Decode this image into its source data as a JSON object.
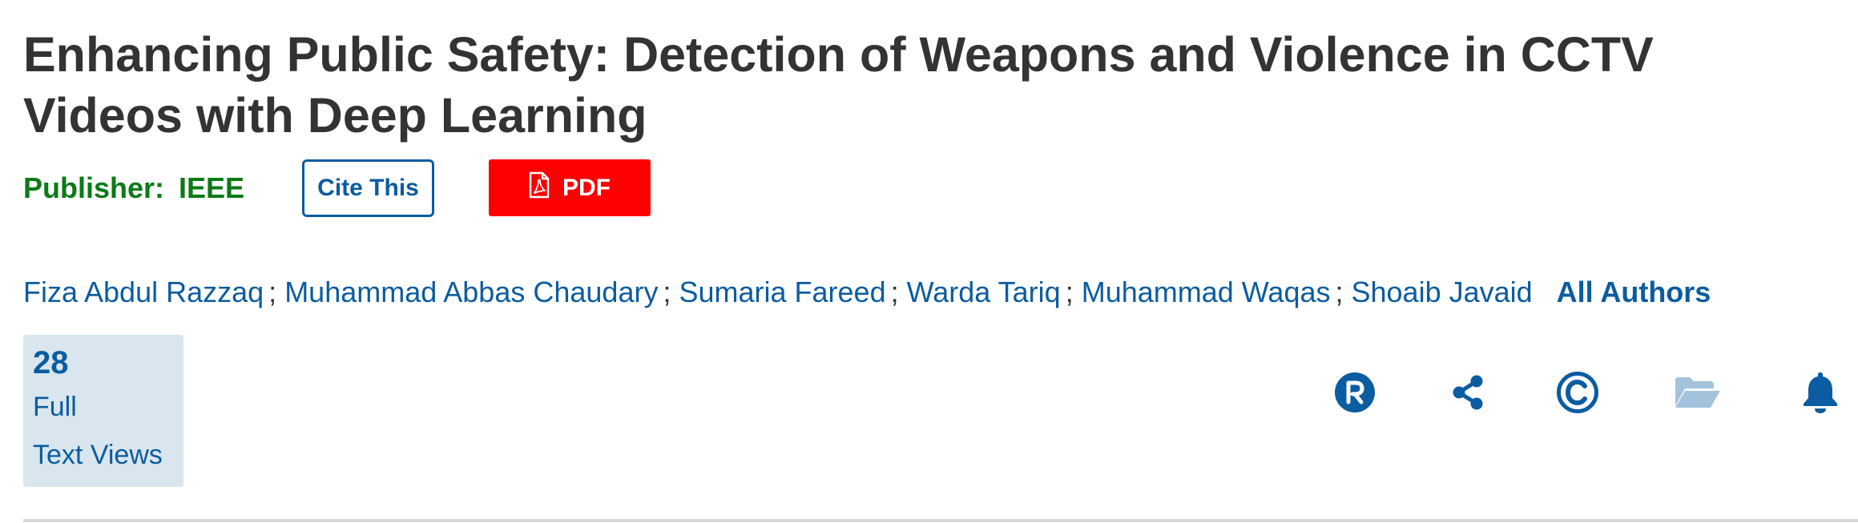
{
  "article": {
    "title": "Enhancing Public Safety: Detection of Weapons and Violence in CCTV Videos with Deep Learning",
    "publisher_label": "Publisher:",
    "publisher_value": "IEEE"
  },
  "actions": {
    "cite_label": "Cite This",
    "pdf_label": "PDF"
  },
  "authors": {
    "list": [
      "Fiza Abdul Razzaq",
      "Muhammad Abbas Chaudary",
      "Sumaria Fareed",
      "Warda Tariq",
      "Muhammad Waqas",
      "Shoaib Javaid"
    ],
    "separator": ";",
    "all_authors_label": "All Authors"
  },
  "metrics": {
    "count": "28",
    "label_line1": "Full",
    "label_line2": "Text Views"
  },
  "toolbar": {
    "icons": [
      "rights-r-icon",
      "share-icon",
      "copyright-icon",
      "folder-icon",
      "bell-icon"
    ]
  },
  "colors": {
    "title": "#333333",
    "publisher": "#0b7a17",
    "link": "#0b5ca0",
    "pdf_button": "#fe0000",
    "metrics_bg": "#d9e6ee",
    "folder_icon": "#a3c2dc"
  }
}
